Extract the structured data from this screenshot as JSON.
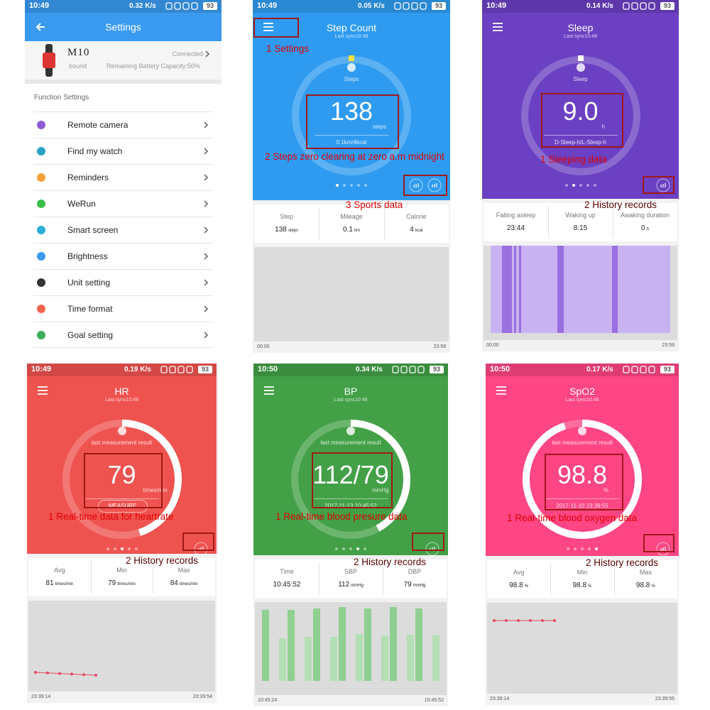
{
  "settings_screen": {
    "status": {
      "time": "10:49",
      "speed": "0.32 K/s",
      "battery": "93"
    },
    "title": "Settings",
    "device": {
      "name": "M10",
      "state": "bound",
      "connection": "Connected",
      "battery": "Remaining Battery Capacity:50%"
    },
    "section": "Function Settings",
    "items": [
      "Remote camera",
      "Find my watch",
      "Reminders",
      "WeRun",
      "Smart screen",
      "Brightness",
      "Unit setting",
      "Time format",
      "Goal setting"
    ]
  },
  "metric_screens": [
    {
      "status": {
        "time": "10:49",
        "speed": "0.05 K/s",
        "battery": "93"
      },
      "title": "Step Count",
      "sync": "Last sync10:48",
      "icon_label": "Steps",
      "value": "138",
      "unit": "steps",
      "subline": "0.1km/4kcal",
      "annotations": [
        "1 Settings",
        "2 Steps zero clearing at zero a.m midnight",
        "3 Sports data"
      ],
      "stats": [
        {
          "label": "Step",
          "value": "138",
          "unit": "steps"
        },
        {
          "label": "Mileage",
          "value": "0.1",
          "unit": "km"
        },
        {
          "label": "Calorie",
          "value": "4",
          "unit": "kcal"
        }
      ],
      "axis": [
        "00:00",
        "23:59"
      ]
    },
    {
      "status": {
        "time": "10:49",
        "speed": "0.14 K/s",
        "battery": "93"
      },
      "title": "Sleep",
      "sync": "Last sync10:48",
      "icon_label": "Sleep",
      "value": "9.0",
      "unit": "h",
      "subline": "D-Sleep-h/L-Sleep-h",
      "annotations": [
        "1 Sleeping data",
        "2 History records"
      ],
      "stats": [
        {
          "label": "Falling asleep",
          "value": "23:44"
        },
        {
          "label": "Waking up",
          "value": "8:15"
        },
        {
          "label": "Awaking duration",
          "value": "0",
          "unit": "h"
        }
      ],
      "axis": [
        "00:00",
        "23:59"
      ]
    },
    {
      "status": {
        "time": "10:49",
        "speed": "0.19 K/s",
        "battery": "93"
      },
      "title": "HR",
      "sync": "Last sync10:48",
      "icon_label": "last measurement result",
      "value": "79",
      "unit": "times/min",
      "button": "MEASURE",
      "annotations": [
        "1 Real-time data for heartrate",
        "2 History records"
      ],
      "stats": [
        {
          "label": "Avg",
          "value": "81",
          "unit": "times/min"
        },
        {
          "label": "Min",
          "value": "79",
          "unit": "times/min"
        },
        {
          "label": "Max",
          "value": "84",
          "unit": "times/min"
        }
      ],
      "axis": [
        "23:39:14",
        "23:39:54"
      ]
    },
    {
      "status": {
        "time": "10:50",
        "speed": "0.34 K/s",
        "battery": "93"
      },
      "title": "BP",
      "sync": "Last sync10:48",
      "icon_label": "last measurement result",
      "value": "112/79",
      "unit": "mmHg",
      "subline": "2017-11-13 10:45:52",
      "annotations": [
        "1 Real-time blood presure data",
        "2 History records"
      ],
      "stats": [
        {
          "label": "Time",
          "value": "10:45:52"
        },
        {
          "label": "SBP",
          "value": "112",
          "unit": "mmHg"
        },
        {
          "label": "DBP",
          "value": "79",
          "unit": "mmHg"
        }
      ],
      "axis": [
        "10:45:24",
        "10:45:52"
      ]
    },
    {
      "status": {
        "time": "10:50",
        "speed": "0.17 K/s",
        "battery": "93"
      },
      "title": "SpO2",
      "sync": "Last sync10:48",
      "icon_label": "last measurement result",
      "value": "98.8",
      "unit": "%",
      "subline": "2017-11-10 23:39:55",
      "annotations": [
        "1 Real-time blood oxygen data",
        "2 History records"
      ],
      "stats": [
        {
          "label": "Avg",
          "value": "98.8",
          "unit": "%"
        },
        {
          "label": "Min",
          "value": "98.8",
          "unit": "%"
        },
        {
          "label": "Max",
          "value": "98.8",
          "unit": "%"
        }
      ],
      "axis": [
        "23:39:14",
        "23:39:55"
      ]
    }
  ]
}
